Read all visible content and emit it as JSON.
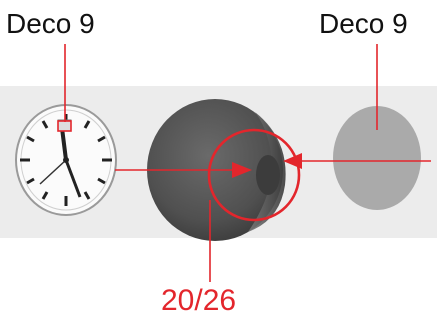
{
  "labels": {
    "left": "Deco 9",
    "right": "Deco 9",
    "bottom": "20/26"
  },
  "colors": {
    "accent": "#e3262c",
    "text": "#111111",
    "band": "#ececec",
    "cylinder": "#555555",
    "disc": "#aaaaaa"
  },
  "icons": {
    "clock": "clock-dial-icon",
    "cylinder": "cylinder-icon",
    "disc": "disc-icon",
    "ring": "circle-ring-icon"
  }
}
